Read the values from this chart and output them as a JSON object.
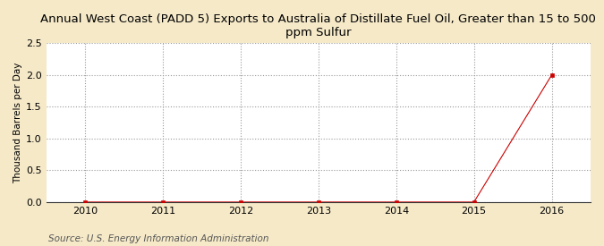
{
  "title": "Annual West Coast (PADD 5) Exports to Australia of Distillate Fuel Oil, Greater than 15 to 500\nppm Sulfur",
  "ylabel": "Thousand Barrels per Day",
  "source": "Source: U.S. Energy Information Administration",
  "outer_bg_color": "#f5e9c8",
  "plot_bg_color": "#ffffff",
  "x_values": [
    2010,
    2011,
    2012,
    2013,
    2014,
    2015,
    2016
  ],
  "y_values": [
    0.0,
    0.0,
    0.0,
    0.0,
    0.0,
    0.0,
    2.0
  ],
  "xlim": [
    2009.5,
    2016.5
  ],
  "ylim": [
    0.0,
    2.5
  ],
  "yticks": [
    0.0,
    0.5,
    1.0,
    1.5,
    2.0,
    2.5
  ],
  "xticks": [
    2010,
    2011,
    2012,
    2013,
    2014,
    2015,
    2016
  ],
  "line_color": "#cc0000",
  "marker_color": "#cc0000",
  "marker_style": "s",
  "marker_size": 3.5,
  "grid_color": "#999999",
  "grid_style": ":",
  "grid_alpha": 1.0,
  "grid_linewidth": 0.8,
  "title_fontsize": 9.5,
  "label_fontsize": 7.5,
  "tick_fontsize": 8,
  "source_fontsize": 7.5
}
